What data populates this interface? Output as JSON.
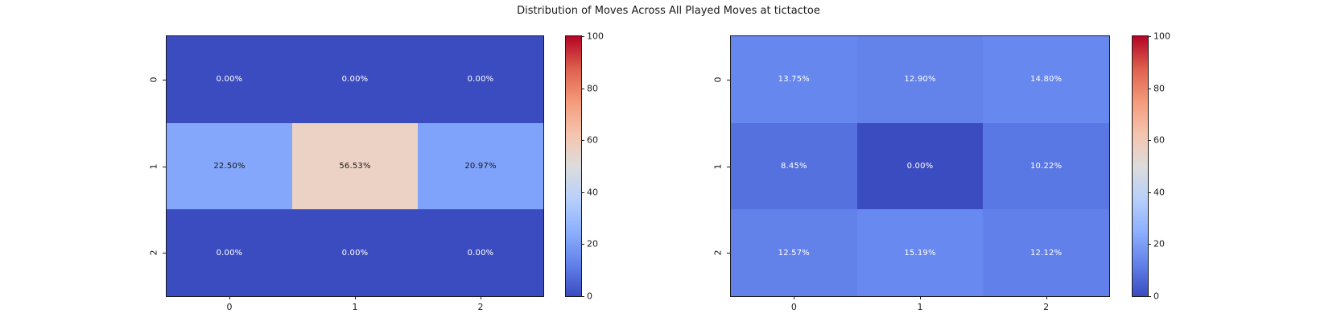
{
  "figure": {
    "title": "Distribution of Moves Across All Played Moves at tictactoe"
  },
  "palette": {
    "colormap": "coolwarm",
    "background": "#ffffff",
    "axes_border": "#1a1a1a",
    "tick_label_color": "#1a1a1a",
    "cell_text_light": "#ffffff",
    "cell_text_dark": "#1a1a1a",
    "colorbar_gradient_top_to_bottom": [
      "#b40426",
      "#de604d",
      "#f49a7b",
      "#f5c4ad",
      "#dddcdc",
      "#b8d0f9",
      "#8db0fe",
      "#6282ea",
      "#3b4cc0"
    ]
  },
  "chart_data": [
    {
      "type": "heatmap",
      "name": "played-moves-heatmap-left",
      "x_tick_labels": [
        "0",
        "1",
        "2"
      ],
      "y_tick_labels": [
        "0",
        "1",
        "2"
      ],
      "values": [
        [
          0.0,
          0.0,
          0.0
        ],
        [
          22.5,
          56.53,
          20.97
        ],
        [
          0.0,
          0.0,
          0.0
        ]
      ],
      "cell_labels": [
        [
          "0.00%",
          "0.00%",
          "0.00%"
        ],
        [
          "22.50%",
          "56.53%",
          "20.97%"
        ],
        [
          "0.00%",
          "0.00%",
          "0.00%"
        ]
      ],
      "cell_colors": [
        [
          "#3b4cc0",
          "#3b4cc0",
          "#3b4cc0"
        ],
        [
          "#84a7fc",
          "#ecd2c4",
          "#7fa2fa"
        ],
        [
          "#3b4cc0",
          "#3b4cc0",
          "#3b4cc0"
        ]
      ],
      "colorbar": {
        "vmin": 0,
        "vmax": 100,
        "ticks": [
          0,
          20,
          40,
          60,
          80,
          100
        ]
      }
    },
    {
      "type": "heatmap",
      "name": "played-moves-heatmap-right",
      "x_tick_labels": [
        "0",
        "1",
        "2"
      ],
      "y_tick_labels": [
        "0",
        "1",
        "2"
      ],
      "values": [
        [
          13.75,
          12.9,
          14.8
        ],
        [
          8.45,
          0.0,
          10.22
        ],
        [
          12.57,
          15.19,
          12.12
        ]
      ],
      "cell_labels": [
        [
          "13.75%",
          "12.90%",
          "14.80%"
        ],
        [
          "8.45%",
          "0.00%",
          "10.22%"
        ],
        [
          "12.57%",
          "15.19%",
          "12.12%"
        ]
      ],
      "cell_colors": [
        [
          "#6687ed",
          "#6383eb",
          "#6788ee"
        ],
        [
          "#5471de",
          "#3b4cc0",
          "#5a78e3"
        ],
        [
          "#6282ea",
          "#6889ef",
          "#6180e9"
        ]
      ],
      "colorbar": {
        "vmin": 0,
        "vmax": 100,
        "ticks": [
          0,
          20,
          40,
          60,
          80,
          100
        ]
      }
    }
  ]
}
